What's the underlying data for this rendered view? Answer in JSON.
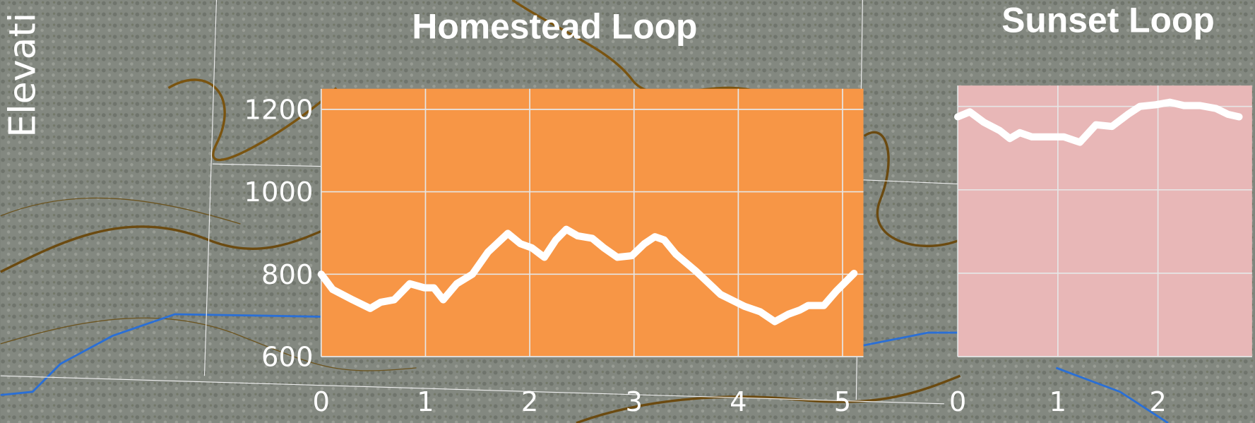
{
  "chart_data": [
    {
      "type": "line",
      "title": "Homestead Loop",
      "ylabel": "Elevati",
      "x": [
        0,
        0.11,
        0.3,
        0.47,
        0.57,
        0.7,
        0.85,
        0.99,
        1.08,
        1.17,
        1.3,
        1.45,
        1.6,
        1.79,
        1.91,
        2.02,
        2.14,
        2.25,
        2.35,
        2.46,
        2.6,
        2.71,
        2.84,
        2.98,
        3.1,
        3.2,
        3.29,
        3.4,
        3.6,
        3.83,
        4.06,
        4.21,
        4.35,
        4.48,
        4.59,
        4.67,
        4.82,
        4.94,
        5.11
      ],
      "series": [
        {
          "color": "#ffffff",
          "values": [
            800,
            763,
            738,
            717,
            732,
            738,
            777,
            767,
            767,
            738,
            777,
            800,
            854,
            899,
            874,
            864,
            841,
            883,
            909,
            893,
            887,
            864,
            841,
            845,
            874,
            891,
            883,
            849,
            806,
            751,
            722,
            709,
            685,
            703,
            713,
            724,
            724,
            759,
            802
          ]
        }
      ],
      "xlim": [
        0,
        5.2
      ],
      "xticks": [
        0,
        1,
        2,
        3,
        4,
        5
      ],
      "ylim": [
        600,
        1250
      ],
      "yticks": [
        600,
        800,
        1000,
        1200
      ],
      "ytick_labels": true,
      "background": "#f79646",
      "grid": true
    },
    {
      "type": "line",
      "title": "Sunset Loop",
      "x": [
        0,
        0.12,
        0.26,
        0.42,
        0.52,
        0.62,
        0.74,
        0.9,
        1.06,
        1.22,
        1.38,
        1.54,
        1.7,
        1.82,
        1.98,
        2.12,
        2.26,
        2.42,
        2.58,
        2.7,
        2.81
      ],
      "series": [
        {
          "color": "#ffffff",
          "values": [
            1175,
            1187,
            1162,
            1142,
            1123,
            1137,
            1127,
            1127,
            1127,
            1114,
            1156,
            1152,
            1181,
            1200,
            1204,
            1210,
            1202,
            1202,
            1195,
            1181,
            1175
          ]
        }
      ],
      "xlim": [
        0,
        2.94
      ],
      "xticks": [
        0,
        1,
        2
      ],
      "ylim": [
        600,
        1250
      ],
      "yticks": [
        600,
        800,
        1000,
        1200
      ],
      "ytick_labels": false,
      "background": "#e8b7b7",
      "grid": true
    }
  ]
}
